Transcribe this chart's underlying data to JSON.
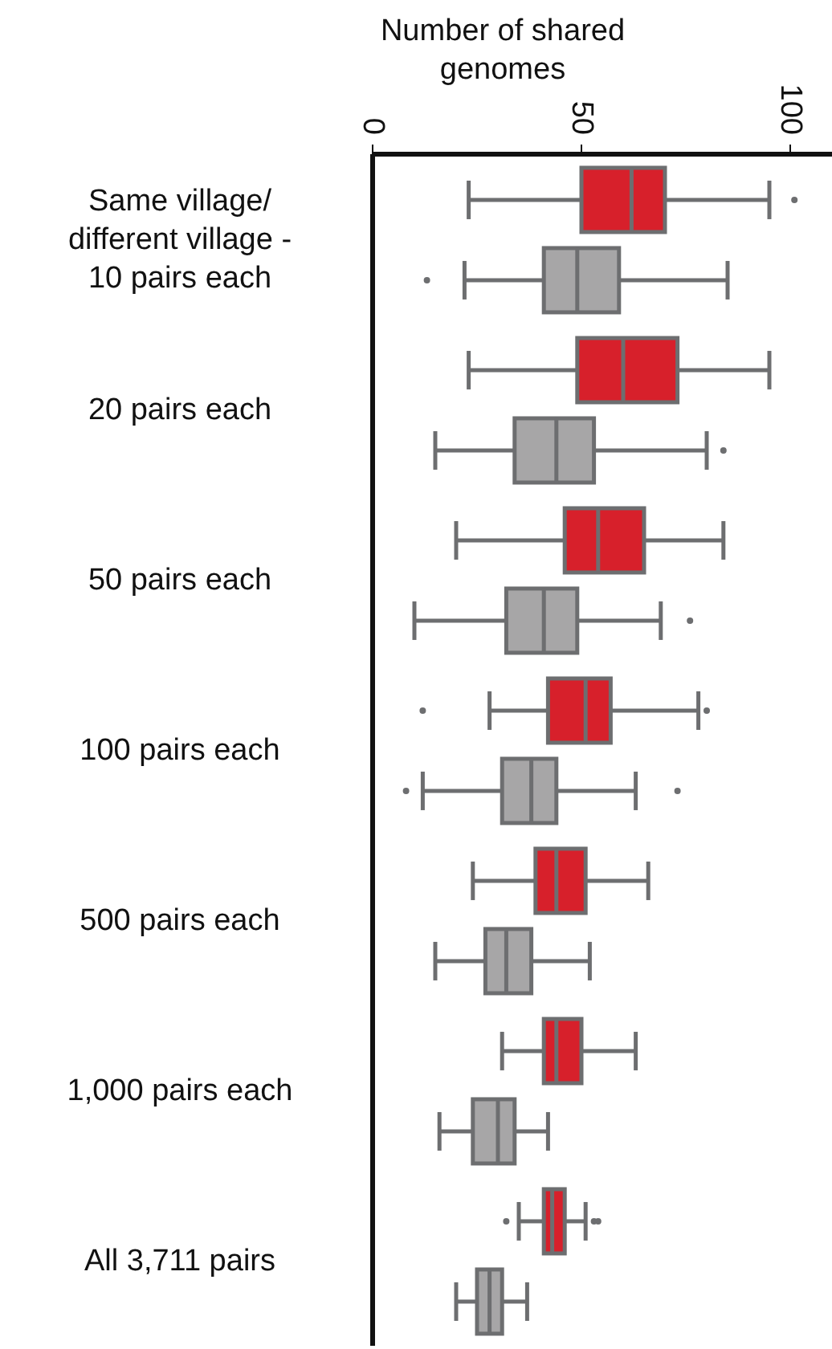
{
  "chart_data": {
    "type": "box",
    "orientation": "horizontal",
    "xlabel": "Number of shared genomes",
    "categories": [
      "Same village/different village - 10 pairs each",
      "20 pairs each",
      "50 pairs each",
      "100 pairs each",
      "500 pairs each",
      "1,000 pairs each",
      "All 3,711 pairs"
    ],
    "series": [
      {
        "color": "#d7202b",
        "boxes": [
          {
            "low": 23,
            "q1": 50,
            "median": 62,
            "q3": 70,
            "high": 95,
            "outliers": [
              101
            ]
          },
          {
            "low": 23,
            "q1": 49,
            "median": 60,
            "q3": 73,
            "high": 95
          },
          {
            "low": 20,
            "q1": 46,
            "median": 54,
            "q3": 65,
            "high": 84
          },
          {
            "low": 28,
            "q1": 42,
            "median": 51,
            "q3": 57,
            "high": 78,
            "outliers": [
              12,
              80
            ]
          },
          {
            "low": 24,
            "q1": 39,
            "median": 44,
            "q3": 51,
            "high": 66
          },
          {
            "low": 31,
            "q1": 41,
            "median": 44,
            "q3": 50,
            "high": 63
          },
          {
            "low": 35,
            "q1": 41,
            "median": 43,
            "q3": 46,
            "high": 51,
            "outliers": [
              32,
              53,
              54
            ]
          }
        ]
      },
      {
        "color": "#a7a6a7",
        "boxes": [
          {
            "low": 22,
            "q1": 41,
            "median": 49,
            "q3": 59,
            "high": 85,
            "outliers": [
              13
            ]
          },
          {
            "low": 15,
            "q1": 34,
            "median": 44,
            "q3": 53,
            "high": 80,
            "outliers": [
              84
            ]
          },
          {
            "low": 10,
            "q1": 32,
            "median": 41,
            "q3": 49,
            "high": 69,
            "outliers": [
              76
            ]
          },
          {
            "low": 12,
            "q1": 31,
            "median": 38,
            "q3": 44,
            "high": 63,
            "outliers": [
              8,
              73
            ]
          },
          {
            "low": 15,
            "q1": 27,
            "median": 32,
            "q3": 38,
            "high": 52
          },
          {
            "low": 16,
            "q1": 24,
            "median": 30,
            "q3": 34,
            "high": 42
          },
          {
            "low": 20,
            "q1": 25,
            "median": 28,
            "q3": 31,
            "high": 37
          }
        ]
      }
    ],
    "xlim": [
      0,
      110
    ],
    "xticks": [
      0,
      50,
      100
    ],
    "grid": false
  }
}
